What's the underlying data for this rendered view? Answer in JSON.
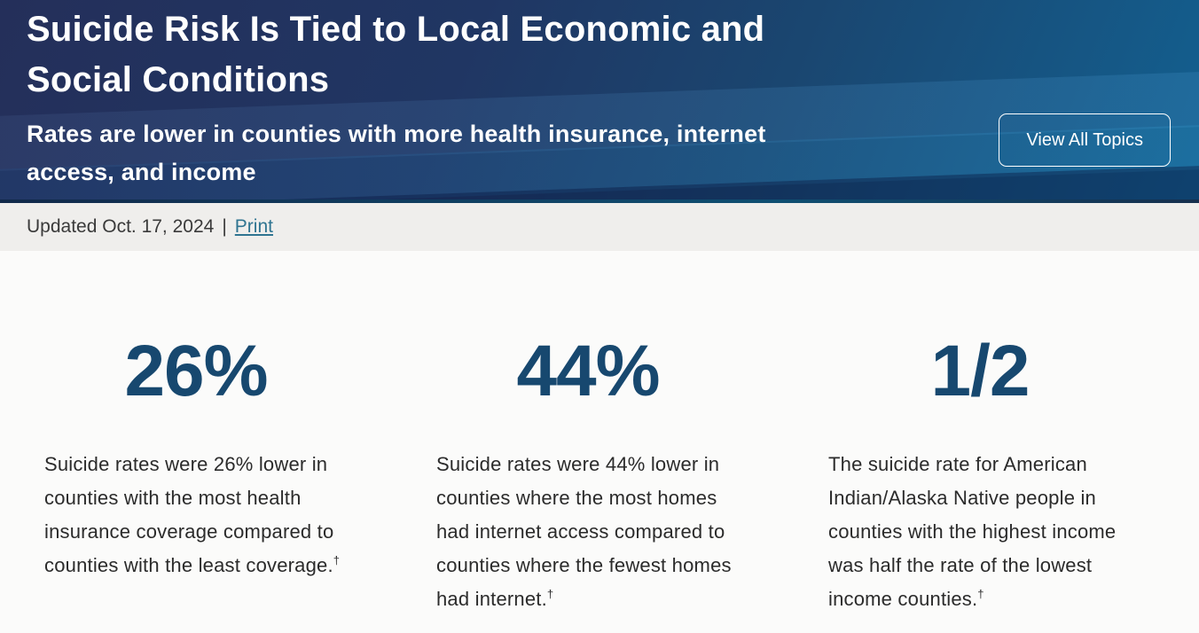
{
  "banner": {
    "title_lines": {
      "0": "Suicide Risk Is Tied to Local Economic and",
      "1": "Social Conditions"
    },
    "subtitle_lines": {
      "0": "Rates are lower in counties with more health insurance, internet",
      "1": "access, and income"
    },
    "button_label": "View All Topics"
  },
  "meta": {
    "updated_label": "Updated Oct. 17, 2024",
    "separator": "|",
    "print_label": "Print"
  },
  "stats": [
    {
      "value": "26%",
      "description": "Suicide rates were 26% lower in counties with the most health insurance coverage compared to counties with the least coverage.",
      "footnote_mark": "†"
    },
    {
      "value": "44%",
      "description": "Suicide rates were 44% lower in counties where the most homes had internet access compared to counties where the fewest homes had internet.",
      "footnote_mark": "†"
    },
    {
      "value": "1/2",
      "description": "The suicide rate for American Indian/Alaska Native people in counties with the highest income was half the rate of the lowest income counties.",
      "footnote_mark": "†"
    }
  ],
  "colors": {
    "banner_navy": "#242f5a",
    "banner_teal": "#136090",
    "stat_number_navy": "#17486f",
    "link_teal": "#2f7491",
    "meta_bar_bg": "#efeeec",
    "page_bg": "#fbfbfa",
    "body_text": "#2b2b2b"
  }
}
